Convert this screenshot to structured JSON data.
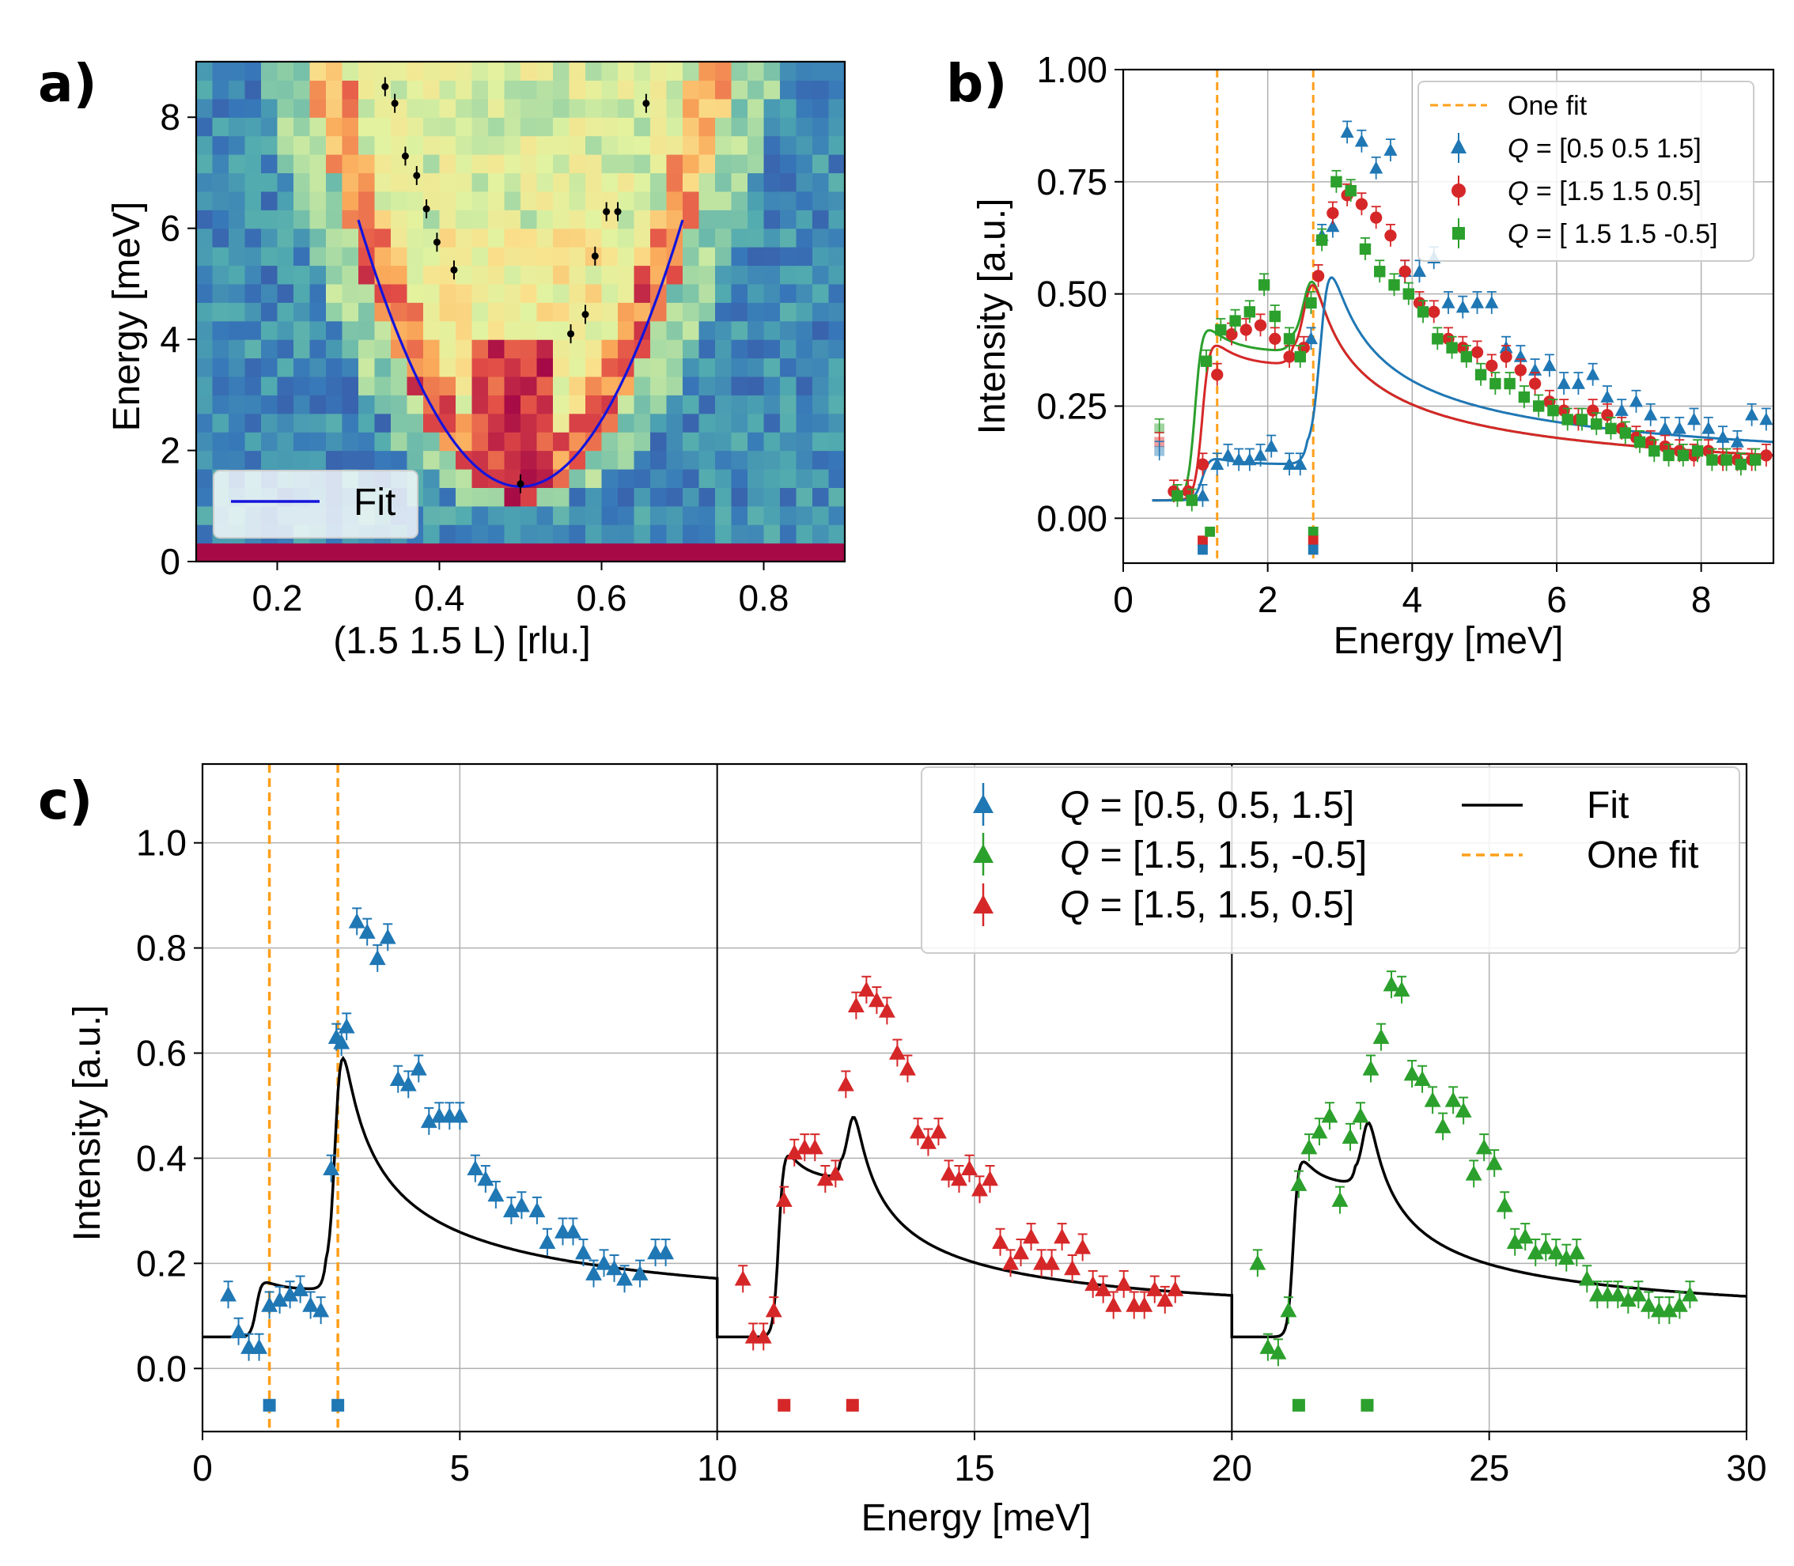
{
  "panels": {
    "a": {
      "label": "a)"
    },
    "b": {
      "label": "b)"
    },
    "c": {
      "label": "c)"
    }
  },
  "colors": {
    "blue": "#1f77b4",
    "red": "#d62728",
    "green": "#2ca02c",
    "orange": "#ff9f1a",
    "fitline_a": "#1414dc"
  },
  "chart_data": [
    {
      "id": "a",
      "type": "heatmap",
      "title": "",
      "xlabel": "(1.5 1.5 L) [rlu.]",
      "ylabel": "Energy [meV]",
      "xlim": [
        0.1,
        0.9
      ],
      "ylim": [
        0,
        9
      ],
      "xticks": [
        0.2,
        0.4,
        0.6,
        0.8
      ],
      "xtick_labels": [
        "0.2",
        "0.4",
        "0.6",
        "0.8"
      ],
      "yticks": [
        0,
        2,
        4,
        6,
        8
      ],
      "ytick_labels": [
        "0",
        "2",
        "4",
        "6",
        "8"
      ],
      "colormap": "Spectral_r",
      "dispersion_minimum": {
        "L": 0.5,
        "E": 1.35
      },
      "points": [
        {
          "x": 0.333,
          "y": 8.55
        },
        {
          "x": 0.345,
          "y": 8.25
        },
        {
          "x": 0.358,
          "y": 7.3
        },
        {
          "x": 0.372,
          "y": 6.95
        },
        {
          "x": 0.384,
          "y": 6.35
        },
        {
          "x": 0.397,
          "y": 5.75
        },
        {
          "x": 0.418,
          "y": 5.25
        },
        {
          "x": 0.5,
          "y": 1.4
        },
        {
          "x": 0.562,
          "y": 4.1
        },
        {
          "x": 0.58,
          "y": 4.45
        },
        {
          "x": 0.592,
          "y": 5.5
        },
        {
          "x": 0.606,
          "y": 6.3
        },
        {
          "x": 0.62,
          "y": 6.3
        },
        {
          "x": 0.655,
          "y": 8.25
        }
      ],
      "legend": [
        {
          "label": "Fit"
        }
      ],
      "legend_position": "bottom-left"
    },
    {
      "id": "b",
      "type": "scatter",
      "xlabel": "Energy [meV]",
      "ylabel": "Intensity [a.u.]",
      "xlim": [
        0,
        9
      ],
      "ylim": [
        -0.1,
        1.0
      ],
      "xticks": [
        0,
        2,
        4,
        6,
        8
      ],
      "xtick_labels": [
        "0",
        "2",
        "4",
        "6",
        "8"
      ],
      "yticks": [
        0.0,
        0.25,
        0.5,
        0.75,
        1.0
      ],
      "ytick_labels": [
        "0.00",
        "0.25",
        "0.50",
        "0.75",
        "1.00"
      ],
      "one_fit_lines": [
        1.3,
        2.63
      ],
      "legend": [
        {
          "label": "One fit"
        },
        {
          "label": "Q = [0.5 0.5 1.5]",
          "q": "Q",
          "rest": " = [0.5 0.5 1.5]"
        },
        {
          "label": "Q = [1.5 1.5 0.5]",
          "q": "Q",
          "rest": " = [1.5 1.5 0.5]"
        },
        {
          "label": "Q = [ 1.5  1.5 -0.5]",
          "q": "Q",
          "rest": " = [ 1.5  1.5 -0.5]"
        }
      ],
      "legend_position": "top-right",
      "series": [
        {
          "name": "Q = [0.5 0.5 1.5]",
          "color": "blue",
          "marker": "triangle",
          "x": [
            1.1,
            1.3,
            1.45,
            1.6,
            1.75,
            1.9,
            2.05,
            2.3,
            2.45,
            2.6,
            2.75,
            2.9,
            3.1,
            3.3,
            3.5,
            3.7,
            3.9,
            4.1,
            4.3,
            4.5,
            4.7,
            4.9,
            5.1,
            5.3,
            5.5,
            5.7,
            5.9,
            6.1,
            6.3,
            6.5,
            6.7,
            6.9,
            7.1,
            7.3,
            7.5,
            7.7,
            7.9,
            8.1,
            8.3,
            8.5,
            8.7,
            8.9
          ],
          "y": [
            0.05,
            0.12,
            0.14,
            0.13,
            0.13,
            0.14,
            0.16,
            0.12,
            0.12,
            0.4,
            0.63,
            0.65,
            0.86,
            0.84,
            0.78,
            0.82,
            0.55,
            0.55,
            0.58,
            0.48,
            0.47,
            0.48,
            0.48,
            0.38,
            0.36,
            0.33,
            0.34,
            0.3,
            0.3,
            0.32,
            0.27,
            0.24,
            0.26,
            0.23,
            0.2,
            0.2,
            0.22,
            0.2,
            0.18,
            0.17,
            0.23,
            0.22
          ]
        },
        {
          "name": "Q = [1.5 1.5 0.5]",
          "color": "red",
          "marker": "circle",
          "x": [
            0.7,
            0.9,
            1.1,
            1.3,
            1.5,
            1.7,
            1.9,
            2.1,
            2.3,
            2.5,
            2.7,
            2.9,
            3.1,
            3.3,
            3.5,
            3.7,
            3.9,
            4.1,
            4.3,
            4.5,
            4.7,
            4.9,
            5.1,
            5.3,
            5.5,
            5.7,
            5.9,
            6.1,
            6.3,
            6.5,
            6.7,
            6.9,
            7.1,
            7.3,
            7.5,
            7.7,
            7.9,
            8.1,
            8.3,
            8.5,
            8.7,
            8.9
          ],
          "y": [
            0.06,
            0.06,
            0.12,
            0.32,
            0.41,
            0.42,
            0.43,
            0.4,
            0.36,
            0.38,
            0.54,
            0.68,
            0.72,
            0.7,
            0.67,
            0.63,
            0.55,
            0.48,
            0.46,
            0.4,
            0.38,
            0.37,
            0.34,
            0.36,
            0.33,
            0.3,
            0.26,
            0.24,
            0.22,
            0.24,
            0.23,
            0.2,
            0.18,
            0.17,
            0.16,
            0.15,
            0.14,
            0.15,
            0.13,
            0.13,
            0.13,
            0.14
          ]
        },
        {
          "name": "Q = [ 1.5  1.5 -0.5]",
          "color": "green",
          "marker": "square",
          "x": [
            0.75,
            0.95,
            1.15,
            1.35,
            1.55,
            1.75,
            1.95,
            2.1,
            2.3,
            2.45,
            2.6,
            2.75,
            2.95,
            3.15,
            3.35,
            3.55,
            3.75,
            3.95,
            4.15,
            4.35,
            4.55,
            4.75,
            4.95,
            5.15,
            5.35,
            5.55,
            5.75,
            5.95,
            6.15,
            6.35,
            6.55,
            6.75,
            6.95,
            7.15,
            7.35,
            7.55,
            7.75,
            7.95,
            8.15,
            8.35,
            8.55,
            8.75
          ],
          "y": [
            0.05,
            0.04,
            0.35,
            0.42,
            0.44,
            0.46,
            0.52,
            0.45,
            0.4,
            0.36,
            0.48,
            0.62,
            0.75,
            0.73,
            0.6,
            0.55,
            0.52,
            0.5,
            0.46,
            0.4,
            0.38,
            0.36,
            0.32,
            0.3,
            0.3,
            0.27,
            0.25,
            0.24,
            0.22,
            0.22,
            0.21,
            0.2,
            0.19,
            0.17,
            0.15,
            0.14,
            0.14,
            0.15,
            0.13,
            0.13,
            0.12,
            0.13
          ]
        }
      ],
      "low_energy_faded_points": [
        {
          "x": 0.5,
          "y": 0.2,
          "color": "green"
        },
        {
          "x": 0.5,
          "y": 0.17,
          "color": "red"
        },
        {
          "x": 0.5,
          "y": 0.15,
          "color": "blue"
        }
      ],
      "gap_markers": [
        {
          "x": 1.1,
          "y": -0.05,
          "color": "red"
        },
        {
          "x": 1.1,
          "y": -0.07,
          "color": "blue"
        },
        {
          "x": 1.2,
          "y": -0.03,
          "color": "green"
        },
        {
          "x": 2.63,
          "y": -0.03,
          "color": "green"
        },
        {
          "x": 2.63,
          "y": -0.05,
          "color": "red"
        },
        {
          "x": 2.63,
          "y": -0.07,
          "color": "blue"
        }
      ]
    },
    {
      "id": "c",
      "type": "scatter",
      "xlabel": "Energy [meV]",
      "ylabel": "Intensity [a.u.]",
      "xlim": [
        0,
        30
      ],
      "ylim": [
        -0.12,
        1.15
      ],
      "xticks": [
        0,
        5,
        10,
        15,
        20,
        25,
        30
      ],
      "xtick_labels": [
        "0",
        "5",
        "10",
        "15",
        "20",
        "25",
        "30"
      ],
      "yticks": [
        0.0,
        0.2,
        0.4,
        0.6,
        0.8,
        1.0
      ],
      "ytick_labels": [
        "0.0",
        "0.2",
        "0.4",
        "0.6",
        "0.8",
        "1.0"
      ],
      "one_fit_lines": [
        1.3,
        2.63
      ],
      "panel_dividers": [
        10,
        20
      ],
      "legend": [
        {
          "label": "Q = [0.5, 0.5, 1.5]",
          "q": "Q",
          "rest": " = [0.5, 0.5, 1.5]"
        },
        {
          "label": "Q = [1.5, 1.5, -0.5]",
          "q": "Q",
          "rest": " = [1.5, 1.5, -0.5]"
        },
        {
          "label": "Q = [1.5, 1.5, 0.5]",
          "q": "Q",
          "rest": " = [1.5, 1.5, 0.5]"
        },
        {
          "label": "Fit"
        },
        {
          "label": "One fit"
        }
      ],
      "legend_position": "top-right",
      "series": [
        {
          "name": "Q = [0.5, 0.5, 1.5]",
          "color": "blue",
          "marker": "triangle",
          "x": [
            0.5,
            0.7,
            0.9,
            1.1,
            1.3,
            1.5,
            1.7,
            1.9,
            2.1,
            2.3,
            2.5,
            2.6,
            2.7,
            2.8,
            3.0,
            3.2,
            3.4,
            3.6,
            3.8,
            4.0,
            4.2,
            4.4,
            4.6,
            4.8,
            5.0,
            5.3,
            5.5,
            5.7,
            6.0,
            6.2,
            6.5,
            6.7,
            7.0,
            7.2,
            7.4,
            7.6,
            7.8,
            8.0,
            8.2,
            8.5,
            8.8,
            9.0
          ],
          "y": [
            0.14,
            0.07,
            0.04,
            0.04,
            0.12,
            0.13,
            0.14,
            0.15,
            0.12,
            0.11,
            0.38,
            0.63,
            0.62,
            0.65,
            0.85,
            0.83,
            0.78,
            0.82,
            0.55,
            0.54,
            0.57,
            0.47,
            0.48,
            0.48,
            0.48,
            0.38,
            0.36,
            0.33,
            0.3,
            0.31,
            0.3,
            0.24,
            0.26,
            0.26,
            0.22,
            0.18,
            0.2,
            0.19,
            0.17,
            0.18,
            0.22,
            0.22
          ]
        },
        {
          "name": "Q = [1.5, 1.5, 0.5]",
          "color": "red",
          "marker": "triangle",
          "x": [
            10.5,
            10.7,
            10.9,
            11.1,
            11.3,
            11.5,
            11.7,
            11.9,
            12.1,
            12.3,
            12.5,
            12.7,
            12.9,
            13.1,
            13.3,
            13.5,
            13.7,
            13.9,
            14.1,
            14.3,
            14.5,
            14.7,
            14.9,
            15.1,
            15.3,
            15.5,
            15.7,
            15.9,
            16.1,
            16.3,
            16.5,
            16.7,
            16.9,
            17.1,
            17.3,
            17.5,
            17.7,
            17.9,
            18.1,
            18.3,
            18.5,
            18.7,
            18.9
          ],
          "y": [
            0.17,
            0.06,
            0.06,
            0.11,
            0.32,
            0.41,
            0.42,
            0.42,
            0.36,
            0.37,
            0.54,
            0.69,
            0.72,
            0.7,
            0.68,
            0.6,
            0.57,
            0.45,
            0.43,
            0.45,
            0.37,
            0.36,
            0.38,
            0.34,
            0.36,
            0.24,
            0.2,
            0.22,
            0.25,
            0.2,
            0.2,
            0.25,
            0.19,
            0.23,
            0.16,
            0.15,
            0.12,
            0.16,
            0.12,
            0.12,
            0.15,
            0.13,
            0.15
          ]
        },
        {
          "name": "Q = [1.5, 1.5, -0.5]",
          "color": "green",
          "marker": "triangle",
          "x": [
            20.5,
            20.7,
            20.9,
            21.1,
            21.3,
            21.5,
            21.7,
            21.9,
            22.1,
            22.3,
            22.5,
            22.7,
            22.9,
            23.1,
            23.3,
            23.5,
            23.7,
            23.9,
            24.1,
            24.3,
            24.5,
            24.7,
            24.9,
            25.1,
            25.3,
            25.5,
            25.7,
            25.9,
            26.1,
            26.3,
            26.5,
            26.7,
            26.9,
            27.1,
            27.3,
            27.5,
            27.7,
            27.9,
            28.1,
            28.3,
            28.5,
            28.7,
            28.9
          ],
          "y": [
            0.2,
            0.04,
            0.03,
            0.11,
            0.35,
            0.42,
            0.45,
            0.48,
            0.32,
            0.44,
            0.48,
            0.57,
            0.63,
            0.73,
            0.72,
            0.56,
            0.55,
            0.51,
            0.46,
            0.51,
            0.49,
            0.37,
            0.42,
            0.39,
            0.31,
            0.24,
            0.25,
            0.22,
            0.23,
            0.22,
            0.21,
            0.22,
            0.17,
            0.14,
            0.14,
            0.14,
            0.13,
            0.14,
            0.12,
            0.11,
            0.11,
            0.12,
            0.14
          ]
        }
      ],
      "gap_markers": [
        {
          "x": 1.3,
          "y": -0.07,
          "color": "blue"
        },
        {
          "x": 2.63,
          "y": -0.07,
          "color": "blue"
        },
        {
          "x": 11.3,
          "y": -0.07,
          "color": "red"
        },
        {
          "x": 12.63,
          "y": -0.07,
          "color": "red"
        },
        {
          "x": 21.3,
          "y": -0.07,
          "color": "green"
        },
        {
          "x": 22.63,
          "y": -0.07,
          "color": "green"
        }
      ]
    }
  ]
}
